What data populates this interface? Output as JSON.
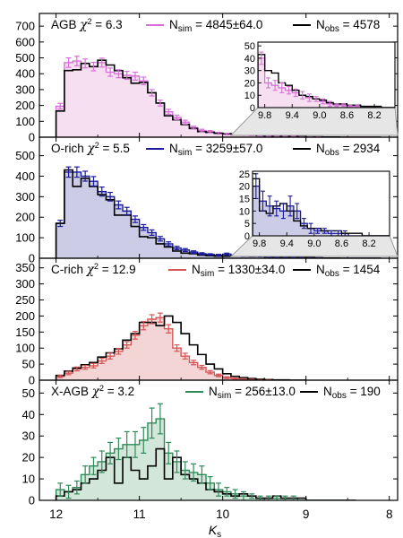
{
  "xlabel": "K",
  "xlabel_sub": "s",
  "chart_data": [
    {
      "type": "histogram",
      "label": "AGB",
      "chi2": "6.3",
      "sim_text": "4845±64.0",
      "obs_text": "4578",
      "sim_color": "#d970d9",
      "fill_color": "#f7dff2",
      "xlim": [
        12.2,
        7.9
      ],
      "ylim": [
        0,
        780
      ],
      "yticks": [
        0,
        100,
        200,
        300,
        400,
        500,
        600,
        700
      ],
      "edges": [
        12.0,
        11.9,
        11.8,
        11.7,
        11.6,
        11.5,
        11.4,
        11.3,
        11.2,
        11.1,
        11.0,
        10.9,
        10.8,
        10.7,
        10.6,
        10.5,
        10.4,
        10.3,
        10.2,
        10.1,
        10.0,
        9.9,
        9.8,
        9.7,
        9.6,
        9.5,
        9.4,
        9.3,
        9.2,
        9.1,
        9.0,
        8.9,
        8.8,
        8.7,
        8.6,
        8.5,
        8.4,
        8.3,
        8.2,
        8.1
      ],
      "sim": [
        195,
        470,
        480,
        465,
        445,
        470,
        410,
        400,
        390,
        385,
        355,
        280,
        215,
        160,
        125,
        95,
        60,
        42,
        35,
        25,
        20,
        18,
        15,
        12,
        9,
        7,
        5,
        4,
        3,
        2,
        1,
        1,
        0,
        0,
        0,
        0,
        0,
        0,
        0
      ],
      "err": [
        18,
        30,
        30,
        28,
        27,
        28,
        26,
        25,
        25,
        25,
        24,
        20,
        18,
        16,
        14,
        12,
        9,
        8,
        7,
        6,
        5,
        4,
        4,
        3,
        3,
        3,
        2,
        2,
        2,
        1,
        1,
        1,
        0,
        0,
        0,
        0,
        0,
        0,
        0
      ],
      "obs": [
        165,
        420,
        425,
        465,
        445,
        485,
        455,
        420,
        375,
        340,
        345,
        280,
        215,
        135,
        110,
        80,
        55,
        35,
        30,
        25,
        22,
        20,
        16,
        13,
        10,
        8,
        6,
        5,
        4,
        3,
        2,
        2,
        1,
        1,
        0,
        0,
        0,
        0,
        0
      ],
      "inset": {
        "xlim": [
          9.9,
          7.9
        ],
        "ylim": [
          0,
          53
        ],
        "yticks": [
          0,
          10,
          20,
          30,
          40,
          50
        ],
        "xticks": [
          9.8,
          9.4,
          9.0,
          8.6,
          8.2
        ],
        "sim": [
          40,
          20,
          18,
          16,
          14,
          12,
          10,
          8,
          7,
          5,
          3,
          2,
          2,
          1,
          1,
          0,
          0,
          0,
          0,
          0
        ],
        "err": [
          5,
          4,
          4,
          4,
          3,
          3,
          3,
          3,
          2,
          2,
          2,
          1,
          1,
          1,
          1,
          0,
          0,
          0,
          0,
          0
        ],
        "obs": [
          43,
          30,
          28,
          20,
          18,
          14,
          10,
          9,
          7,
          6,
          4,
          3,
          3,
          2,
          2,
          1,
          1,
          1,
          0,
          0
        ]
      }
    },
    {
      "type": "histogram",
      "label": "O-rich",
      "chi2": "5.5",
      "sim_text": "3259±57.0",
      "obs_text": "2934",
      "sim_color": "#1a1a9e",
      "fill_color": "#cccce6",
      "xlim": [
        12.2,
        7.9
      ],
      "ylim": [
        0,
        590
      ],
      "yticks": [
        0,
        100,
        200,
        300,
        400,
        500
      ],
      "edges": [
        12.0,
        11.9,
        11.8,
        11.7,
        11.6,
        11.5,
        11.4,
        11.3,
        11.2,
        11.1,
        11.0,
        10.9,
        10.8,
        10.7,
        10.6,
        10.5,
        10.4,
        10.3,
        10.2,
        10.1,
        10.0,
        9.9,
        9.8,
        9.7,
        9.6,
        9.5,
        9.4,
        9.3,
        9.2,
        9.1,
        9.0,
        8.9,
        8.8,
        8.7,
        8.6,
        8.5,
        8.4,
        8.3,
        8.2,
        8.1
      ],
      "sim": [
        170,
        420,
        420,
        400,
        375,
        325,
        300,
        260,
        230,
        190,
        150,
        125,
        95,
        70,
        50,
        40,
        30,
        22,
        18,
        15,
        20,
        14,
        12,
        11,
        10,
        7,
        5,
        4,
        3,
        2,
        1,
        1,
        0,
        0,
        0,
        0,
        0,
        0,
        0
      ],
      "err": [
        15,
        25,
        25,
        24,
        23,
        22,
        21,
        19,
        18,
        16,
        14,
        13,
        11,
        10,
        8,
        7,
        6,
        5,
        4,
        4,
        5,
        4,
        4,
        3,
        3,
        3,
        2,
        2,
        2,
        1,
        1,
        1,
        0,
        0,
        0,
        0,
        0,
        0,
        0
      ],
      "obs": [
        170,
        430,
        350,
        390,
        350,
        310,
        285,
        210,
        210,
        155,
        105,
        100,
        70,
        55,
        35,
        25,
        22,
        15,
        12,
        10,
        10,
        12,
        10,
        9,
        10,
        7,
        6,
        5,
        4,
        3,
        3,
        2,
        1,
        1,
        0,
        0,
        0,
        0,
        0
      ],
      "inset": {
        "xlim": [
          9.9,
          7.9
        ],
        "ylim": [
          0,
          26
        ],
        "yticks": [
          0,
          5,
          10,
          15,
          20,
          25
        ],
        "xticks": [
          9.8,
          9.4,
          9.0,
          8.6,
          8.2
        ],
        "sim": [
          20,
          14,
          12,
          11,
          10,
          12,
          10,
          5,
          3,
          2,
          2,
          1,
          1,
          1,
          0,
          0,
          0,
          0,
          0,
          0
        ],
        "err": [
          5,
          4,
          4,
          3,
          3,
          4,
          3,
          2,
          2,
          1,
          1,
          1,
          1,
          1,
          0,
          0,
          0,
          0,
          0,
          0
        ],
        "obs": [
          23,
          10,
          9,
          12,
          13,
          10,
          6,
          4,
          3,
          3,
          2,
          2,
          2,
          1,
          1,
          1,
          0,
          0,
          0,
          0
        ]
      }
    },
    {
      "type": "histogram",
      "label": "C-rich",
      "chi2": "12.9",
      "sim_text": "1330±34.0",
      "obs_text": "1454",
      "sim_color": "#d65555",
      "fill_color": "#f4d5d5",
      "xlim": [
        12.2,
        7.9
      ],
      "ylim": [
        0,
        380
      ],
      "yticks": [
        0,
        50,
        100,
        150,
        200,
        250,
        300,
        350
      ],
      "edges": [
        12.0,
        11.9,
        11.8,
        11.7,
        11.6,
        11.5,
        11.4,
        11.3,
        11.2,
        11.1,
        11.0,
        10.9,
        10.8,
        10.7,
        10.6,
        10.5,
        10.4,
        10.3,
        10.2,
        10.1,
        10.0,
        9.9,
        9.8,
        9.7,
        9.6,
        9.5,
        9.4,
        9.3,
        9.2,
        9.1,
        9.0
      ],
      "sim": [
        12,
        22,
        35,
        40,
        45,
        60,
        75,
        90,
        110,
        140,
        170,
        190,
        195,
        160,
        100,
        75,
        55,
        40,
        25,
        15,
        8,
        5,
        3,
        2,
        1,
        1,
        0,
        0,
        0,
        0
      ],
      "err": [
        4,
        5,
        6,
        6,
        7,
        8,
        9,
        9,
        10,
        12,
        13,
        14,
        14,
        13,
        10,
        9,
        7,
        6,
        5,
        4,
        3,
        2,
        2,
        1,
        1,
        1,
        0,
        0,
        0,
        0
      ],
      "obs": [
        15,
        28,
        38,
        48,
        55,
        72,
        85,
        98,
        125,
        145,
        180,
        180,
        170,
        200,
        180,
        145,
        110,
        80,
        50,
        35,
        20,
        12,
        8,
        5,
        3,
        2,
        1,
        1,
        0,
        0
      ]
    },
    {
      "type": "histogram",
      "label": "X-AGB",
      "chi2": "3.2",
      "sim_text": "256±13.0",
      "obs_text": "190",
      "sim_color": "#2e8b57",
      "fill_color": "#d2e6da",
      "xlim": [
        12.2,
        7.9
      ],
      "ylim": [
        0,
        56
      ],
      "yticks": [
        0,
        10,
        20,
        30,
        40,
        50
      ],
      "edges": [
        12.0,
        11.9,
        11.8,
        11.7,
        11.6,
        11.5,
        11.4,
        11.3,
        11.2,
        11.1,
        11.0,
        10.9,
        10.8,
        10.7,
        10.6,
        10.5,
        10.4,
        10.3,
        10.2,
        10.1,
        10.0,
        9.9,
        9.8,
        9.7,
        9.6,
        9.5,
        9.4,
        9.3,
        9.2,
        9.1,
        9.0,
        8.9,
        8.8,
        8.7,
        8.6,
        8.5,
        8.4
      ],
      "sim": [
        5,
        4,
        6,
        12,
        16,
        18,
        22,
        24,
        26,
        26,
        28,
        36,
        38,
        22,
        18,
        14,
        13,
        12,
        8,
        5,
        4,
        3,
        2,
        2,
        1,
        1,
        1,
        1,
        1,
        0,
        0,
        0,
        0,
        0,
        0,
        0
      ],
      "err": [
        3,
        3,
        3,
        4,
        4,
        5,
        5,
        5,
        6,
        6,
        6,
        7,
        7,
        5,
        5,
        4,
        4,
        4,
        3,
        3,
        2,
        2,
        2,
        1,
        1,
        1,
        1,
        1,
        1,
        0,
        0,
        0,
        0,
        0,
        0,
        0
      ],
      "obs": [
        2,
        4,
        5,
        8,
        10,
        14,
        20,
        8,
        20,
        14,
        10,
        16,
        24,
        10,
        20,
        12,
        10,
        8,
        5,
        4,
        3,
        2,
        3,
        2,
        1,
        1,
        2,
        1,
        1,
        1,
        0,
        0,
        0,
        0,
        0,
        0
      ]
    }
  ],
  "xticks": [
    12,
    11,
    10,
    9,
    8
  ]
}
